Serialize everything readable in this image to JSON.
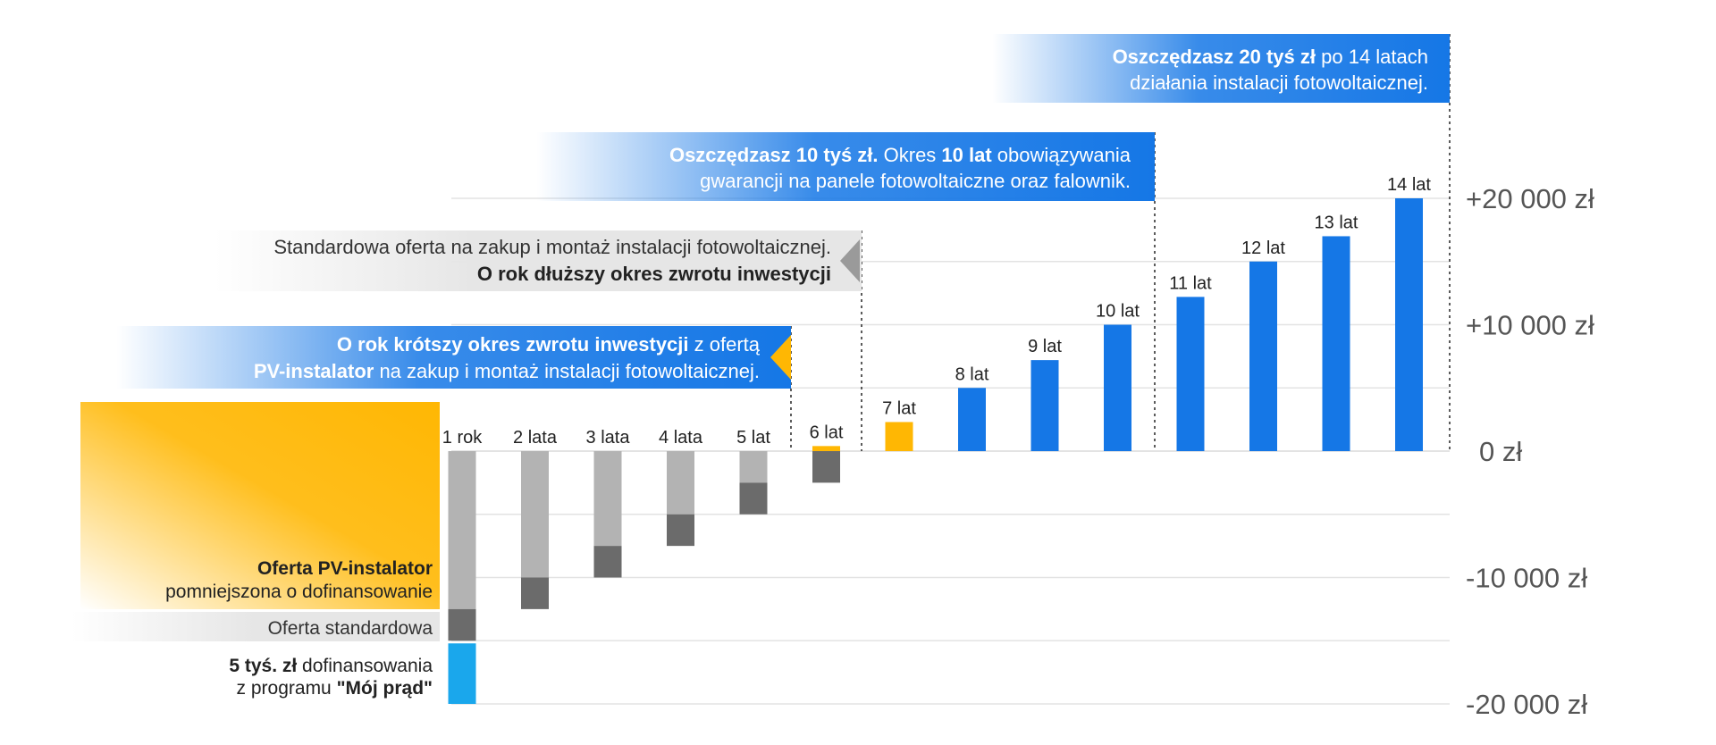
{
  "chart_data": {
    "type": "bar",
    "title": "",
    "xlabel": "",
    "ylabel": "",
    "ylim": [
      -20000,
      20000
    ],
    "y_ticks": [
      "+20 000 zł",
      "+10 000 zł",
      "0 zł",
      "-10 000 zł",
      "-20 000 zł"
    ],
    "y_tick_values": [
      20000,
      10000,
      0,
      -10000,
      -20000
    ],
    "categories": [
      "1 rok",
      "2 lata",
      "3 lata",
      "4 lata",
      "5 lat",
      "6 lat",
      "7 lat",
      "8 lat",
      "9 lat",
      "10 lat",
      "11 lat",
      "12 lat",
      "13 lat",
      "14 lat"
    ],
    "series": [
      {
        "name": "Oferta PV-instalator",
        "color": "#b3b3b3",
        "values": [
          -12500,
          -10000,
          -7500,
          -5000,
          -2500,
          400,
          2300,
          5000,
          7200,
          10000,
          12200,
          15000,
          17000,
          20000
        ]
      },
      {
        "name": "Oferta standardowa (różnica)",
        "color": "#6b6b6b",
        "values": [
          -2500,
          -2500,
          -2500,
          -2500,
          -2500,
          -2500,
          0,
          0,
          0,
          0,
          0,
          0,
          0,
          0
        ]
      },
      {
        "name": "Dofinansowanie Mój prąd",
        "color": "#1aa7ec",
        "values": [
          -5000,
          0,
          0,
          0,
          0,
          0,
          0,
          0,
          0,
          0,
          0,
          0,
          0,
          0
        ]
      }
    ],
    "colors": {
      "grey": "#b3b3b3",
      "dark": "#6b6b6b",
      "orange": "#ffb703",
      "blue": "#1577e6",
      "light_blue": "#1aa7ec",
      "grid": "#e3e3e3"
    }
  },
  "banners": {
    "b20k": {
      "bold": "Oszczędzasz 20 tyś zł",
      "rest": " po 14 latach",
      "line2": "działania instalacji fotowoltaicznej."
    },
    "b10k": {
      "bold1": "Oszczędzasz 10 tyś zł.",
      "mid": " Okres ",
      "bold2": "10 lat",
      "rest": " obowiązywania",
      "line2": "gwarancji na panele fotowoltaiczne oraz falownik."
    },
    "standard": {
      "line1": "Standardowa oferta na zakup i montaż instalacji fotowoltaicznej.",
      "line2": "O rok dłuższy okres zwrotu inwestycji"
    },
    "shorter": {
      "bold1": "O rok krótszy okres zwrotu inwestycji",
      "rest1": " z ofertą",
      "bold2": "PV-instalator",
      "rest2": " na zakup i montaż instalacji fotowoltaicznej."
    }
  },
  "legend": {
    "pv_title": "Oferta PV-instalator",
    "pv_sub": "pomniejszona o dofinansowanie",
    "standard": "Oferta standardowa",
    "grant_bold": "5 tyś. zł",
    "grant_rest": " dofinansowania",
    "grant_line2_pre": "z programu ",
    "grant_line2_bold": "\"Mój prąd\""
  }
}
